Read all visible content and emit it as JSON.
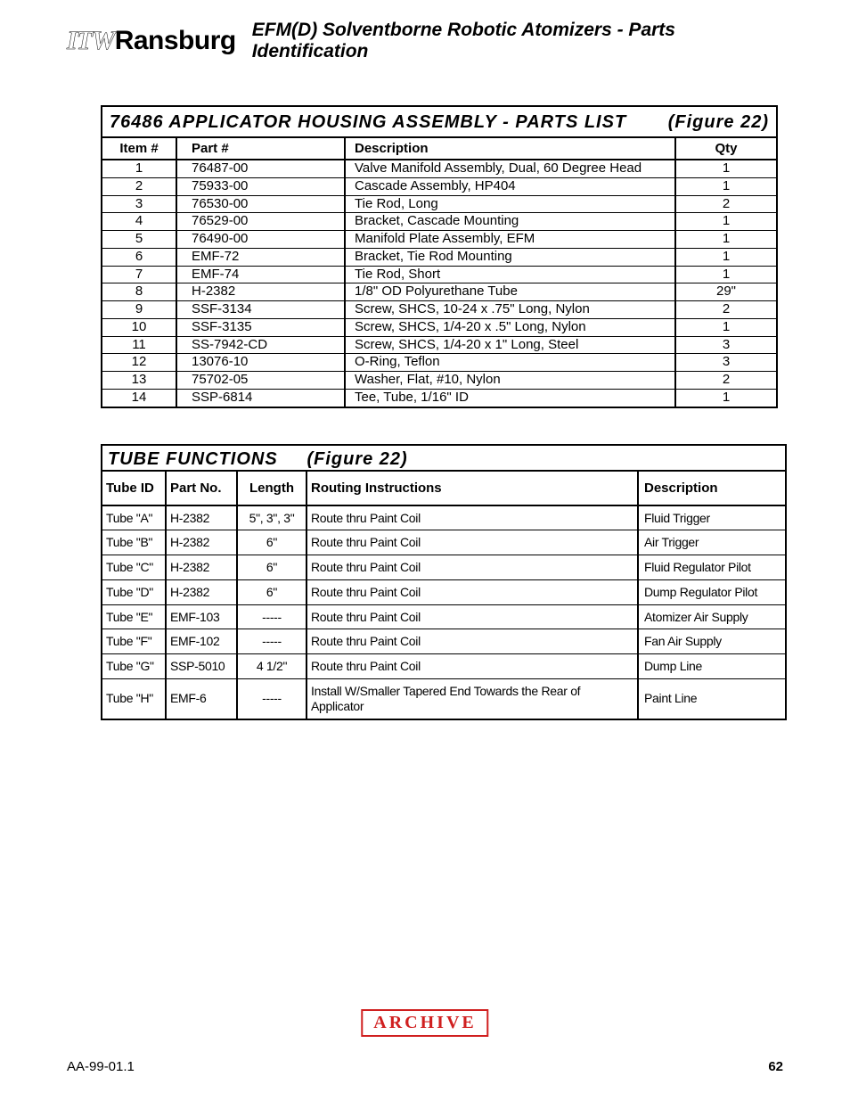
{
  "header": {
    "logo_itw": "ITW",
    "logo_main": "Ransburg",
    "title": "EFM(D) Solventborne Robotic Atomizers - Parts Identification"
  },
  "parts_list": {
    "title_left": "76486 APPLICATOR HOUSING ASSEMBLY - PARTS LIST",
    "title_right": "(Figure 22)",
    "columns": {
      "item": "Item #",
      "part": "Part #",
      "desc": "Description",
      "qty": "Qty"
    },
    "rows": [
      {
        "item": "1",
        "part": "76487-00",
        "desc": "Valve Manifold Assembly, Dual, 60 Degree Head",
        "qty": "1"
      },
      {
        "item": "2",
        "part": "75933-00",
        "desc": "Cascade Assembly, HP404",
        "qty": "1"
      },
      {
        "item": "3",
        "part": "76530-00",
        "desc": "Tie Rod, Long",
        "qty": "2"
      },
      {
        "item": "4",
        "part": "76529-00",
        "desc": "Bracket, Cascade Mounting",
        "qty": "1"
      },
      {
        "item": "5",
        "part": "76490-00",
        "desc": "Manifold Plate Assembly, EFM",
        "qty": "1"
      },
      {
        "item": "6",
        "part": "EMF-72",
        "desc": "Bracket, Tie Rod Mounting",
        "qty": "1"
      },
      {
        "item": "7",
        "part": "EMF-74",
        "desc": "Tie Rod, Short",
        "qty": "1"
      },
      {
        "item": "8",
        "part": "H-2382",
        "desc": "1/8\" OD Polyurethane Tube",
        "qty": "29\""
      },
      {
        "item": "9",
        "part": "SSF-3134",
        "desc": "Screw, SHCS, 10-24 x .75\" Long, Nylon",
        "qty": "2"
      },
      {
        "item": "10",
        "part": "SSF-3135",
        "desc": "Screw, SHCS, 1/4-20 x .5\" Long, Nylon",
        "qty": "1"
      },
      {
        "item": "11",
        "part": "SS-7942-CD",
        "desc": "Screw, SHCS, 1/4-20 x 1\" Long, Steel",
        "qty": "3"
      },
      {
        "item": "12",
        "part": "13076-10",
        "desc": "O-Ring, Teflon",
        "qty": "3"
      },
      {
        "item": "13",
        "part": "75702-05",
        "desc": "Washer, Flat, #10, Nylon",
        "qty": "2"
      },
      {
        "item": "14",
        "part": "SSP-6814",
        "desc": "Tee, Tube, 1/16\" ID",
        "qty": "1"
      }
    ]
  },
  "tube_functions": {
    "title_left": "TUBE FUNCTIONS",
    "title_right": "(Figure 22)",
    "columns": {
      "tid": "Tube ID",
      "pn": "Part No.",
      "len": "Length",
      "ri": "Routing Instructions",
      "desc": "Description"
    },
    "rows": [
      {
        "tid": "Tube \"A\"",
        "pn": "H-2382",
        "len": "5\", 3\", 3\"",
        "ri": "Route thru Paint Coil",
        "desc": "Fluid Trigger"
      },
      {
        "tid": "Tube \"B\"",
        "pn": "H-2382",
        "len": "6\"",
        "ri": "Route thru Paint Coil",
        "desc": "Air Trigger"
      },
      {
        "tid": "Tube \"C\"",
        "pn": "H-2382",
        "len": "6\"",
        "ri": "Route thru Paint Coil",
        "desc": "Fluid Regulator Pilot"
      },
      {
        "tid": "Tube \"D\"",
        "pn": "H-2382",
        "len": "6\"",
        "ri": "Route thru Paint Coil",
        "desc": "Dump Regulator Pilot"
      },
      {
        "tid": "Tube \"E\"",
        "pn": "EMF-103",
        "len": "-----",
        "ri": "Route thru Paint Coil",
        "desc": "Atomizer Air Supply"
      },
      {
        "tid": "Tube \"F\"",
        "pn": "EMF-102",
        "len": "-----",
        "ri": "Route thru Paint Coil",
        "desc": "Fan Air Supply"
      },
      {
        "tid": "Tube \"G\"",
        "pn": "SSP-5010",
        "len": "4 1/2\"",
        "ri": "Route thru Paint Coil",
        "desc": "Dump Line"
      },
      {
        "tid": "Tube \"H\"",
        "pn": "EMF-6",
        "len": "-----",
        "ri": "Install W/Smaller Tapered End Towards the Rear of Applicator",
        "desc": "Paint Line"
      }
    ]
  },
  "stamp": "ARCHIVE",
  "footer": {
    "doc": "AA-99-01.1",
    "page": "62"
  },
  "colors": {
    "red": "#d01f1f",
    "black": "#000000",
    "bg": "#ffffff"
  }
}
